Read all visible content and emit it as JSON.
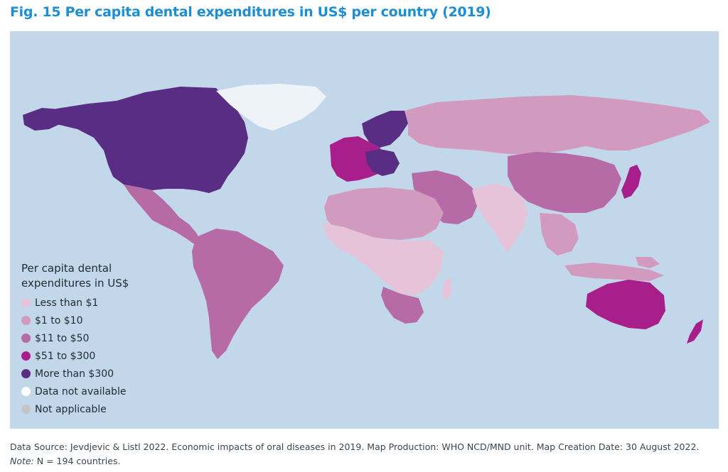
{
  "figure": {
    "title": "Fig. 15  Per capita dental expenditures in US$ per country (2019)"
  },
  "map": {
    "background_color": "#c3d7ea",
    "legend": {
      "title_line1": "Per capita dental",
      "title_line2": "expenditures in US$",
      "items": [
        {
          "label": "Less than $1",
          "color": "#e6c3d8"
        },
        {
          "label": "$1 to $10",
          "color": "#d39ac0"
        },
        {
          "label": "$11 to $50",
          "color": "#b66aa6"
        },
        {
          "label": "$51 to $300",
          "color": "#a81e8a"
        },
        {
          "label": "More than $300",
          "color": "#5a2d84"
        },
        {
          "label": "Data not available",
          "color": "#ffffff"
        },
        {
          "label": "Not applicable",
          "color": "#c4c4c4"
        }
      ]
    }
  },
  "footer": {
    "source_text": "Data Source: Jevdjevic & Listl 2022. Economic impacts of oral diseases in 2019.  Map Production: WHO NCD/MND unit. Map Creation Date: 30 August 2022.",
    "note_label": "Note:",
    "note_text": " N = 194 countries."
  }
}
